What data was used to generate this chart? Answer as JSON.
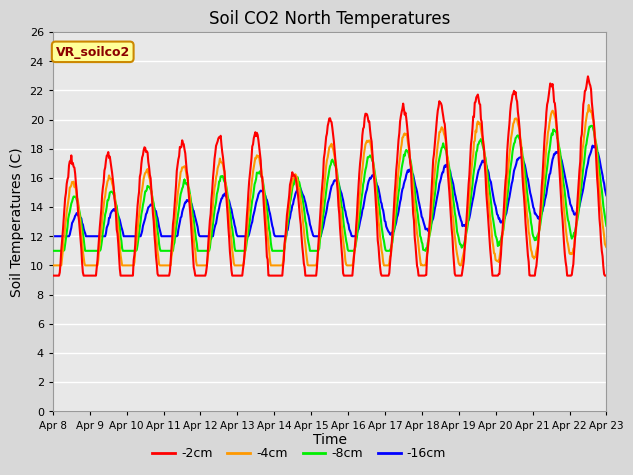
{
  "title": "Soil CO2 North Temperatures",
  "xlabel": "Time",
  "ylabel": "Soil Temperatures (C)",
  "annotation": "VR_soilco2",
  "ylim": [
    0,
    26
  ],
  "yticks": [
    0,
    2,
    4,
    6,
    8,
    10,
    12,
    14,
    16,
    18,
    20,
    22,
    24,
    26
  ],
  "xtick_labels": [
    "Apr 8",
    "Apr 9",
    "Apr 10",
    "Apr 11",
    "Apr 12",
    "Apr 13",
    "Apr 14",
    "Apr 15",
    "Apr 16",
    "Apr 17",
    "Apr 18",
    "Apr 19",
    "Apr 20",
    "Apr 21",
    "Apr 22",
    "Apr 23"
  ],
  "num_days": 15,
  "colors": {
    "-2cm": "#ff0000",
    "-4cm": "#ff9900",
    "-8cm": "#00ee00",
    "-16cm": "#0000ff"
  },
  "legend_labels": [
    "-2cm",
    "-4cm",
    "-8cm",
    "-16cm"
  ],
  "background_color": "#d8d8d8",
  "plot_bg_color": "#e8e8e8",
  "grid_color": "#ffffff",
  "annotation_bg": "#ffff99",
  "annotation_border": "#cc8800"
}
